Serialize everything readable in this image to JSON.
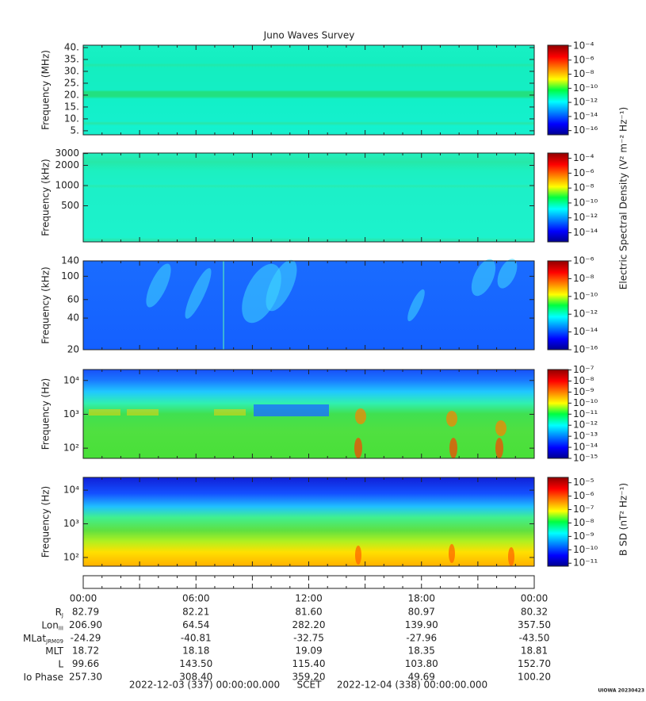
{
  "title": "Juno Waves Survey",
  "panels": [
    {
      "ylabel": "Frequency (MHz)",
      "log": false,
      "ylim": [
        3.3,
        41
      ],
      "yticks": [
        {
          "value": 5,
          "label": "5."
        },
        {
          "value": 10,
          "label": "10."
        },
        {
          "value": 15,
          "label": "15."
        },
        {
          "value": 20,
          "label": "20."
        },
        {
          "value": 25,
          "label": "25."
        },
        {
          "value": 30,
          "label": "30."
        },
        {
          "value": 35,
          "label": "35."
        },
        {
          "value": 40,
          "label": "40."
        }
      ],
      "clim": [
        2.5e-17,
        0.00013
      ],
      "cticks": [
        {
          "value": 0.0001,
          "label": "10⁻⁴"
        },
        {
          "value": 1e-06,
          "label": "10⁻⁶"
        },
        {
          "value": 1e-08,
          "label": "10⁻⁸"
        },
        {
          "value": 1e-10,
          "label": "10⁻¹⁰"
        },
        {
          "value": 1e-12,
          "label": "10⁻¹²"
        },
        {
          "value": 1e-14,
          "label": "10⁻¹⁴"
        },
        {
          "value": 1e-16,
          "label": "10⁻¹⁶"
        }
      ]
    },
    {
      "ylabel": "Frequency (kHz)",
      "log": true,
      "ylim": [
        145,
        3050
      ],
      "yticks": [
        500,
        1000,
        2000,
        3000
      ],
      "clim": [
        6e-16,
        0.0005
      ],
      "cticks": [
        {
          "value": 0.0001,
          "label": "10⁻⁴"
        },
        {
          "value": 1e-06,
          "label": "10⁻⁶"
        },
        {
          "value": 1e-08,
          "label": "10⁻⁸"
        },
        {
          "value": 1e-10,
          "label": "10⁻¹⁰"
        },
        {
          "value": 1e-12,
          "label": "10⁻¹²"
        },
        {
          "value": 1e-14,
          "label": "10⁻¹⁴"
        }
      ]
    },
    {
      "ylabel": "Frequency (kHz)",
      "log": true,
      "ylim": [
        20,
        140
      ],
      "yticks": [
        20,
        40,
        60,
        100,
        140
      ],
      "clim": [
        1e-16,
        1e-06
      ],
      "cticks": [
        {
          "value": 1e-06,
          "label": "10⁻⁶"
        },
        {
          "value": 1e-08,
          "label": "10⁻⁸"
        },
        {
          "value": 1e-10,
          "label": "10⁻¹⁰"
        },
        {
          "value": 1e-12,
          "label": "10⁻¹²"
        },
        {
          "value": 1e-14,
          "label": "10⁻¹⁴"
        },
        {
          "value": 1e-16,
          "label": "10⁻¹⁶"
        }
      ]
    },
    {
      "ylabel": "Frequency (Hz)",
      "log": true,
      "ylim": [
        50,
        21000
      ],
      "yticks": [
        {
          "value": 100,
          "label": "10²"
        },
        {
          "value": 1000,
          "label": "10³"
        },
        {
          "value": 10000,
          "label": "10⁴"
        }
      ],
      "clim": [
        1e-15,
        1.1e-07
      ],
      "cticks": [
        {
          "value": 1e-07,
          "label": "10⁻⁷"
        },
        {
          "value": 1e-08,
          "label": "10⁻⁸"
        },
        {
          "value": 1e-09,
          "label": "10⁻⁹"
        },
        {
          "value": 1e-10,
          "label": "10⁻¹⁰"
        },
        {
          "value": 1e-11,
          "label": "10⁻¹¹"
        },
        {
          "value": 1e-12,
          "label": "10⁻¹²"
        },
        {
          "value": 1e-13,
          "label": "10⁻¹³"
        },
        {
          "value": 1e-14,
          "label": "10⁻¹⁴"
        },
        {
          "value": 1e-15,
          "label": "10⁻¹⁵"
        }
      ]
    },
    {
      "ylabel": "Frequency (Hz)",
      "log": true,
      "ylim": [
        55,
        24000
      ],
      "yticks": [
        {
          "value": 100,
          "label": "10²"
        },
        {
          "value": 1000,
          "label": "10³"
        },
        {
          "value": 10000,
          "label": "10⁴"
        }
      ],
      "clim": [
        6e-12,
        2.5e-05
      ],
      "cticks": [
        {
          "value": 1e-05,
          "label": "10⁻⁵"
        },
        {
          "value": 1e-06,
          "label": "10⁻⁶"
        },
        {
          "value": 1e-07,
          "label": "10⁻⁷"
        },
        {
          "value": 1e-08,
          "label": "10⁻⁸"
        },
        {
          "value": 1e-09,
          "label": "10⁻⁹"
        },
        {
          "value": 1e-10,
          "label": "10⁻¹⁰"
        },
        {
          "value": 1e-11,
          "label": "10⁻¹¹"
        }
      ]
    }
  ],
  "electric_label": "Electric Spectral Density (V² m⁻² Hz⁻¹)",
  "magnetic_label": "B SD (nT² Hz⁻¹)",
  "ephemeris": {
    "times": [
      "00:00",
      "06:00",
      "12:00",
      "18:00",
      "00:00"
    ],
    "rows": [
      {
        "label": "R",
        "sub": "J",
        "values": [
          "82.79",
          "82.21",
          "81.60",
          "80.97",
          "80.32"
        ]
      },
      {
        "label": "Lon",
        "sub": "III",
        "values": [
          "206.90",
          "64.54",
          "282.20",
          "139.90",
          "357.50"
        ]
      },
      {
        "label": "MLat",
        "sub": "JRM09",
        "values": [
          "-24.29",
          "-40.81",
          "-32.75",
          "-27.96",
          "-43.50"
        ]
      },
      {
        "label": "MLT",
        "values": [
          "18.72",
          "18.18",
          "19.09",
          "18.35",
          "18.81"
        ]
      },
      {
        "label": "L",
        "values": [
          "99.66",
          "143.50",
          "115.40",
          "103.80",
          "152.70"
        ]
      },
      {
        "label": "Io Phase",
        "values": [
          "257.30",
          "308.40",
          "359.20",
          "49.69",
          "100.20"
        ]
      }
    ]
  },
  "footer": {
    "start": "2022-12-03 (337) 00:00:00.000",
    "scet": "SCET",
    "end": "2022-12-04 (338) 00:00:00.000"
  },
  "stamp": "UIOWA 20230423"
}
